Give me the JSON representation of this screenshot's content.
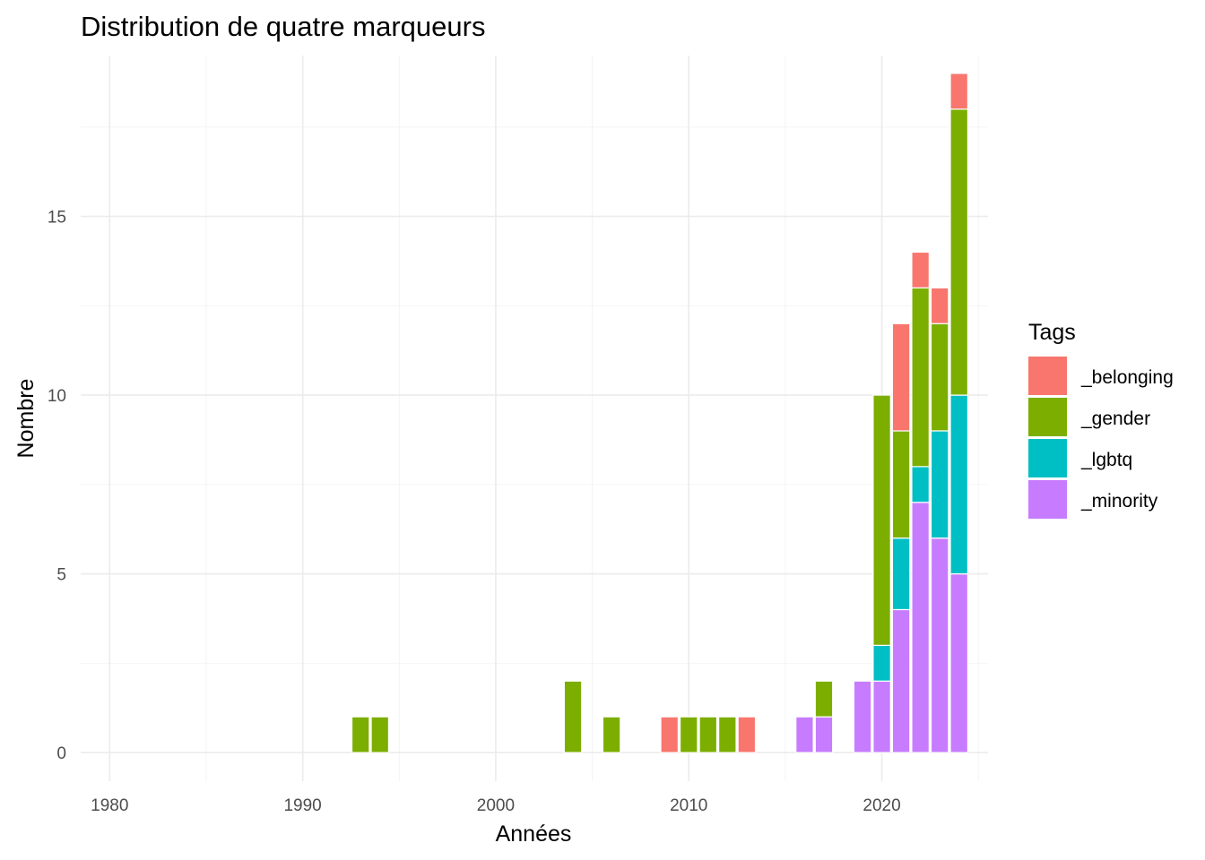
{
  "chart_data": {
    "type": "bar",
    "stacked": true,
    "title": "Distribution de quatre marqueurs",
    "xlabel": "Années",
    "ylabel": "Nombre",
    "xlim": [
      1978.5,
      2025.5
    ],
    "ylim": [
      -0.8,
      19.5
    ],
    "x_ticks": [
      1980,
      1990,
      2000,
      2010,
      2020
    ],
    "y_ticks": [
      0,
      5,
      10,
      15
    ],
    "grid": true,
    "legend": {
      "title": "Tags",
      "position": "right"
    },
    "x": [
      1993,
      1994,
      2004,
      2006,
      2009,
      2010,
      2011,
      2012,
      2013,
      2016,
      2017,
      2019,
      2020,
      2021,
      2022,
      2023,
      2024
    ],
    "series": [
      {
        "name": "_belonging",
        "color": "#F8766D",
        "values": [
          0,
          0,
          0,
          0,
          1,
          0,
          0,
          0,
          1,
          0,
          0,
          0,
          0,
          3,
          1,
          1,
          1
        ]
      },
      {
        "name": "_gender",
        "color": "#7CAE00",
        "values": [
          1,
          1,
          2,
          1,
          0,
          1,
          1,
          1,
          0,
          0,
          1,
          0,
          7,
          3,
          5,
          3,
          8
        ]
      },
      {
        "name": "_lgbtq",
        "color": "#00BFC4",
        "values": [
          0,
          0,
          0,
          0,
          0,
          0,
          0,
          0,
          0,
          0,
          0,
          0,
          1,
          2,
          1,
          3,
          5
        ]
      },
      {
        "name": "_minority",
        "color": "#C77CFF",
        "values": [
          0,
          0,
          0,
          0,
          0,
          0,
          0,
          0,
          0,
          1,
          1,
          2,
          2,
          4,
          7,
          6,
          5
        ]
      }
    ]
  }
}
